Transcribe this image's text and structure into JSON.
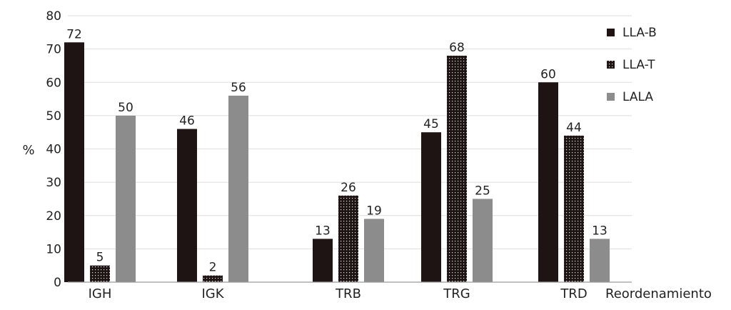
{
  "chart_data": {
    "type": "bar",
    "categories": [
      "IGH",
      "IGK",
      "TRB",
      "TRG",
      "TRD"
    ],
    "series": [
      {
        "name": "LLA-B",
        "values": [
          72,
          46,
          13,
          45,
          60
        ],
        "color": "#1e1414",
        "pattern": "solid"
      },
      {
        "name": "LLA-T",
        "values": [
          5,
          2,
          26,
          68,
          44
        ],
        "color": "#1e1414",
        "pattern": "dotted"
      },
      {
        "name": "LALA",
        "values": [
          50,
          56,
          19,
          25,
          13
        ],
        "color": "#8c8c8c",
        "pattern": "solid"
      }
    ],
    "ylabel": "%",
    "xlabel": "Reordenamiento",
    "ylim": [
      0,
      80
    ],
    "yticks": [
      0,
      10,
      20,
      30,
      40,
      50,
      60,
      70,
      80
    ],
    "grid": true,
    "legend_position": "top-right"
  }
}
